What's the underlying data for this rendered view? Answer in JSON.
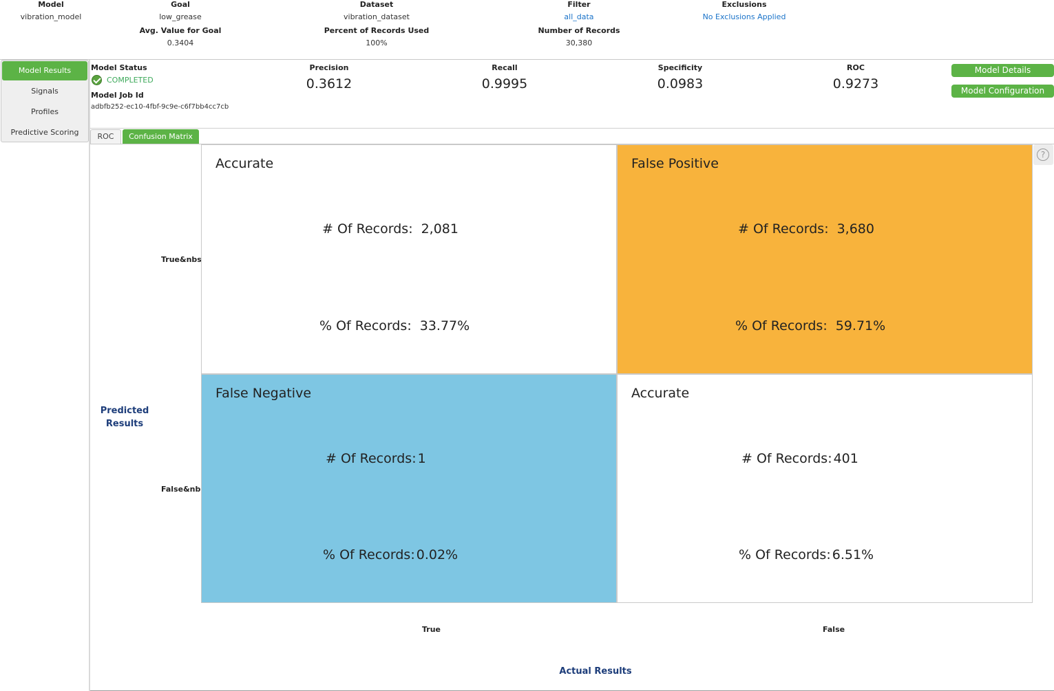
{
  "summary": {
    "model": {
      "label": "Model",
      "value": "vibration_model"
    },
    "goal": {
      "label": "Goal",
      "value": "low_grease"
    },
    "dataset": {
      "label": "Dataset",
      "value": "vibration_dataset"
    },
    "filter": {
      "label": "Filter",
      "value": "all_data"
    },
    "exclusions": {
      "label": "Exclusions",
      "value": "No Exclusions Applied"
    },
    "avg_value": {
      "label": "Avg. Value for Goal",
      "value": "0.3404"
    },
    "percent_used": {
      "label": "Percent of Records Used",
      "value": "100%"
    },
    "num_records": {
      "label": "Number of Records",
      "value": "30,380"
    }
  },
  "nav": {
    "items": [
      {
        "label": "Model Results",
        "active": true
      },
      {
        "label": "Signals"
      },
      {
        "label": "Profiles"
      },
      {
        "label": "Predictive Scoring"
      }
    ]
  },
  "status": {
    "label": "Model Status",
    "value": "COMPLETED",
    "job_label": "Model Job Id",
    "job_id": "adbfb252-ec10-4fbf-9c9e-c6f7bb4cc7cb"
  },
  "metrics": [
    {
      "label": "Precision",
      "value": "0.3612"
    },
    {
      "label": "Recall",
      "value": "0.9995"
    },
    {
      "label": "Specificity",
      "value": "0.0983"
    },
    {
      "label": "ROC",
      "value": "0.9273"
    }
  ],
  "buttons": {
    "details": "Model Details",
    "configuration": "Model Configuration"
  },
  "tabs": [
    {
      "label": "ROC"
    },
    {
      "label": "Confusion Matrix",
      "active": true
    }
  ],
  "help_glyph": "?",
  "matrix": {
    "count_label": "# Of Records:",
    "percent_label": "% Of Records:",
    "colors": {
      "false_positive": "#f8b33c",
      "false_negative": "#7ec6e3",
      "accurate": "#ffffff"
    },
    "cells": [
      {
        "title": "Accurate",
        "count": "2,081",
        "percent": "33.77%"
      },
      {
        "title": "False Positive",
        "count": "3,680",
        "percent": "59.71%"
      },
      {
        "title": "False Negative",
        "count": "1",
        "percent": "0.02%"
      },
      {
        "title": "Accurate",
        "count": "401",
        "percent": "6.51%"
      }
    ],
    "predicted_title": "Predicted Results",
    "predicted_true": "True&nbsp;",
    "predicted_false": "False&nbsp;",
    "actual_title": "Actual Results",
    "actual_true": "True",
    "actual_false": "False"
  }
}
